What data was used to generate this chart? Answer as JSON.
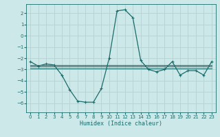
{
  "xlabel": "Humidex (Indice chaleur)",
  "bg_color": "#cce8e8",
  "grid_color": "#b8d4d4",
  "line_color": "#1a6b6b",
  "xlim": [
    -0.5,
    23.5
  ],
  "ylim": [
    -6.8,
    2.8
  ],
  "yticks": [
    -6,
    -5,
    -4,
    -3,
    -2,
    -1,
    0,
    1,
    2
  ],
  "xticks": [
    0,
    1,
    2,
    3,
    4,
    5,
    6,
    7,
    8,
    9,
    10,
    11,
    12,
    13,
    14,
    15,
    16,
    17,
    18,
    19,
    20,
    21,
    22,
    23
  ],
  "lines": [
    {
      "x": [
        0,
        1,
        2,
        3,
        4,
        5,
        6,
        7,
        8,
        9,
        10,
        11,
        12,
        13,
        14,
        15,
        16,
        17,
        18,
        19,
        20,
        21,
        22,
        23
      ],
      "y": [
        -2.3,
        -2.7,
        -2.5,
        -2.6,
        -3.5,
        -4.8,
        -5.8,
        -5.9,
        -5.9,
        -4.7,
        -2.0,
        2.2,
        2.3,
        1.6,
        -2.2,
        -3.0,
        -3.2,
        -3.0,
        -2.3,
        -3.5,
        -3.1,
        -3.1,
        -3.5,
        -2.3
      ],
      "marker": true
    },
    {
      "x": [
        0,
        23
      ],
      "y": [
        -2.6,
        -2.6
      ],
      "marker": false
    },
    {
      "x": [
        0,
        23
      ],
      "y": [
        -2.75,
        -2.75
      ],
      "marker": false
    },
    {
      "x": [
        0,
        23
      ],
      "y": [
        -2.9,
        -2.9
      ],
      "marker": false
    }
  ]
}
